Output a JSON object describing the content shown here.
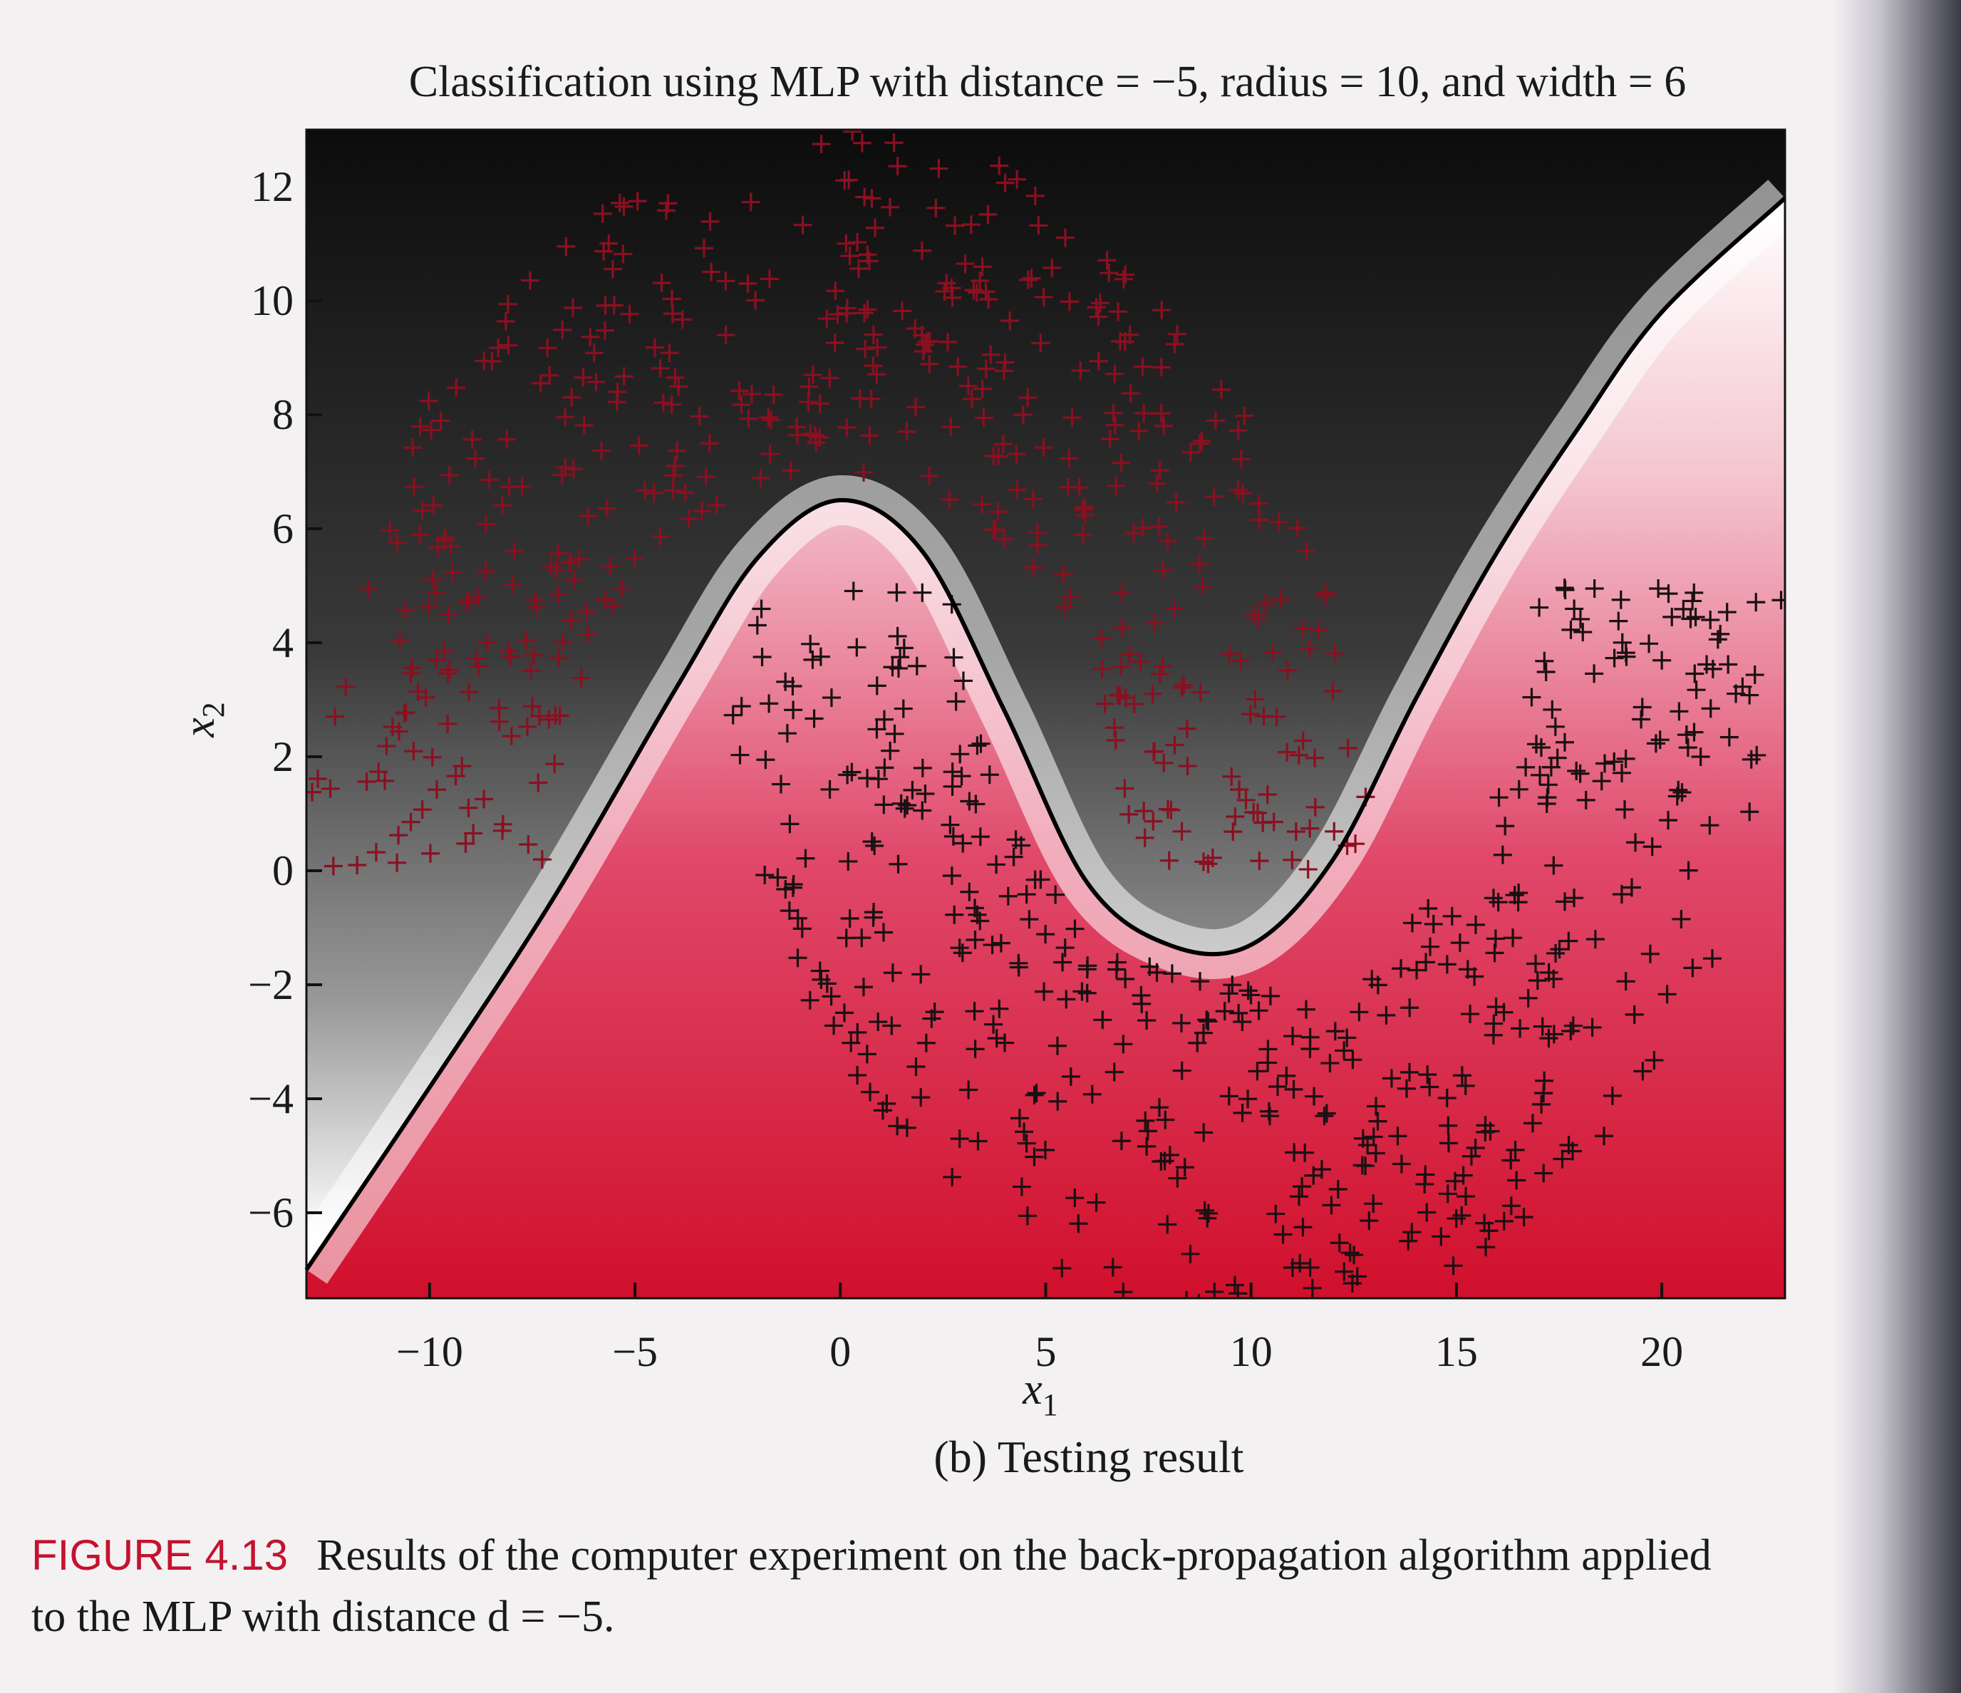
{
  "chart_data": {
    "type": "scatter",
    "title": "Classification using MLP with distance = −5, radius = 10, and width = 6",
    "xlabel": "x",
    "xlabel_sub": "1",
    "ylabel": "x",
    "ylabel_sub": "2",
    "xlim": [
      -13,
      23
    ],
    "ylim": [
      -7.5,
      13
    ],
    "xticks": [
      -10,
      -5,
      0,
      5,
      10,
      15,
      20
    ],
    "xtick_labels": [
      "−10",
      "−5",
      "0",
      "5",
      "10",
      "15",
      "20"
    ],
    "yticks": [
      12,
      10,
      8,
      6,
      4,
      2,
      0,
      -2,
      -4,
      -6
    ],
    "ytick_labels": [
      "12",
      "10",
      "8",
      "6",
      "4",
      "2",
      "0",
      "−2",
      "−4",
      "−6"
    ],
    "marker": "+",
    "background": "gradient shading of classifier output: dark (upper class) to crimson (lower class), white at boundary",
    "series": [
      {
        "class": "upper moon",
        "color": "#8a1020",
        "center": [
          0,
          0
        ],
        "radius": 10,
        "width": 6,
        "arc": "upper",
        "count": 1000
      },
      {
        "class": "lower moon",
        "color": "#1a1012",
        "center": [
          10,
          5
        ],
        "radius": 10,
        "width": 6,
        "arc": "lower",
        "count": 1000
      }
    ],
    "decision_boundary": {
      "x": [
        -13,
        -10,
        -7,
        -4,
        -2,
        0,
        2,
        4,
        6,
        8,
        10,
        12,
        14,
        16,
        18,
        20,
        23
      ],
      "y": [
        -7.0,
        -3.8,
        -0.5,
        3.2,
        5.5,
        6.5,
        5.6,
        2.8,
        -0.2,
        -1.3,
        -1.3,
        0.2,
        3.0,
        5.6,
        7.8,
        9.8,
        11.8
      ]
    },
    "grid": false,
    "legend": "none"
  },
  "subcaption": "(b) Testing result",
  "caption": {
    "label": "FIGURE 4.13",
    "text_line1": "Results of the computer experiment on the back-propagation algorithm applied",
    "text_line2": "to the MLP with distance d = −5."
  },
  "colors": {
    "upper_class_marker": "#8a1020",
    "lower_class_marker": "#1a1012",
    "crimson": "#d0102c",
    "dark": "#0c0c0c",
    "caption_label": "#c4122f"
  }
}
